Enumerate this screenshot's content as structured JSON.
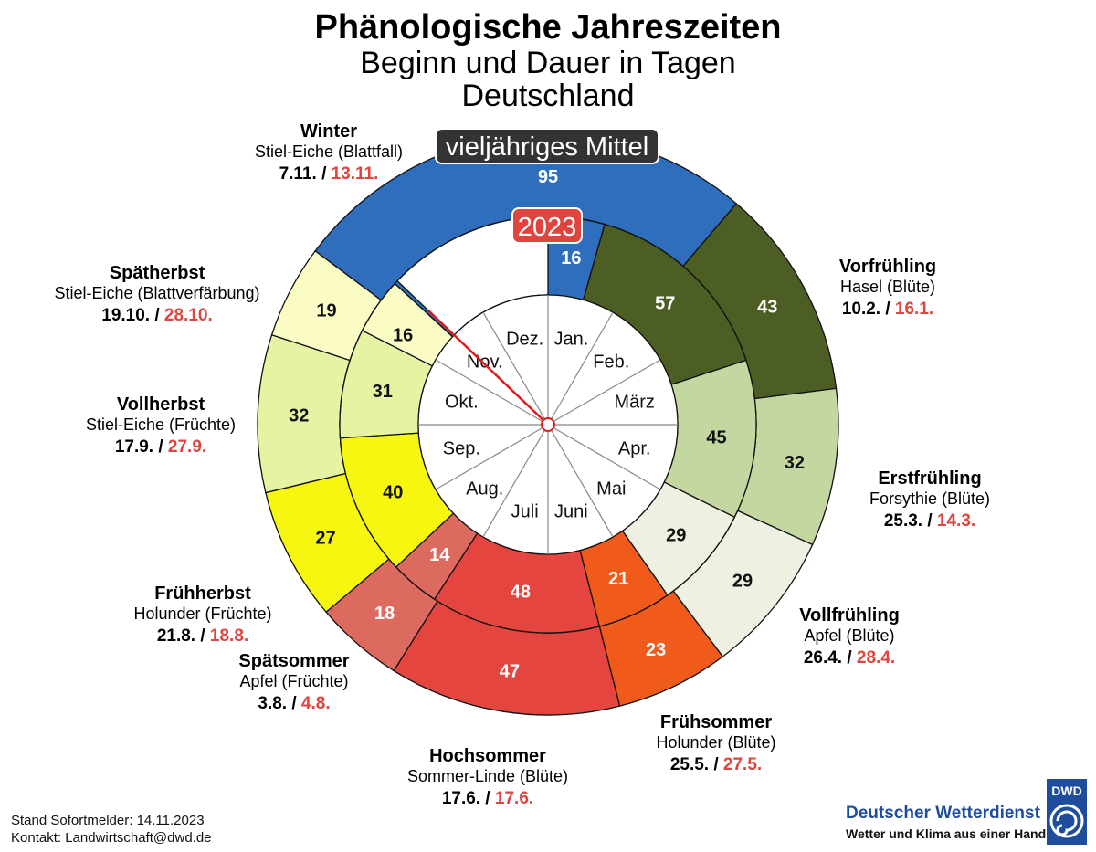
{
  "title": "Phänologische Jahreszeiten",
  "subtitle1": "Beginn und Dauer in Tagen",
  "subtitle2": "Deutschland",
  "outer_badge": "vieljähriges Mittel",
  "inner_badge": "2023",
  "footer": {
    "stand": "Stand Sofortmelder: 14.11.2023",
    "kontakt": "Kontakt: Landwirtschaft@dwd.de"
  },
  "dwd": {
    "logo_text": "DWD",
    "name": "Deutscher Wetterdienst",
    "slogan": "Wetter und Klima aus einer Hand"
  },
  "chart_data": {
    "type": "pie",
    "months": [
      "Jan.",
      "Feb.",
      "März",
      "Apr.",
      "Mai",
      "Juni",
      "Juli",
      "Aug.",
      "Sep.",
      "Okt.",
      "Nov.",
      "Dez."
    ],
    "seasons": [
      {
        "name": "Vorfrühling",
        "plant": "Hasel (Blüte)",
        "mean_start": "10.2.",
        "start_2023": "16.1.",
        "mean_days": 43,
        "days_2023": 57,
        "color": "#4d5e25",
        "text_color": "#ffffff"
      },
      {
        "name": "Erstfrühling",
        "plant": "Forsythie (Blüte)",
        "mean_start": "25.3.",
        "start_2023": "14.3.",
        "mean_days": 32,
        "days_2023": 45,
        "color": "#c4d7a0",
        "text_color": "#111111"
      },
      {
        "name": "Vollfrühling",
        "plant": "Apfel (Blüte)",
        "mean_start": "26.4.",
        "start_2023": "28.4.",
        "mean_days": 29,
        "days_2023": 29,
        "color": "#eef1e1",
        "text_color": "#111111"
      },
      {
        "name": "Frühsommer",
        "plant": "Holunder (Blüte)",
        "mean_start": "25.5.",
        "start_2023": "27.5.",
        "mean_days": 23,
        "days_2023": 21,
        "color": "#f05a1a",
        "text_color": "#ffffff"
      },
      {
        "name": "Hochsommer",
        "plant": "Sommer-Linde (Blüte)",
        "mean_start": "17.6.",
        "start_2023": "17.6.",
        "mean_days": 47,
        "days_2023": 48,
        "color": "#e4453f",
        "text_color": "#ffffff"
      },
      {
        "name": "Spätsommer",
        "plant": "Apfel (Früchte)",
        "mean_start": "3.8.",
        "start_2023": "4.8.",
        "mean_days": 18,
        "days_2023": 14,
        "color": "#dd6a5e",
        "text_color": "#ffffff"
      },
      {
        "name": "Frühherbst",
        "plant": "Holunder (Früchte)",
        "mean_start": "21.8.",
        "start_2023": "18.8.",
        "mean_days": 27,
        "days_2023": 40,
        "color": "#f6f60f",
        "text_color": "#111111"
      },
      {
        "name": "Vollherbst",
        "plant": "Stiel-Eiche (Früchte)",
        "mean_start": "17.9.",
        "start_2023": "27.9.",
        "mean_days": 32,
        "days_2023": 31,
        "color": "#e6f3a2",
        "text_color": "#111111"
      },
      {
        "name": "Spätherbst",
        "plant": "Stiel-Eiche (Blattverfärbung)",
        "mean_start": "19.10.",
        "start_2023": "28.10.",
        "mean_days": 19,
        "days_2023": 16,
        "color": "#fbfcc4",
        "text_color": "#111111"
      },
      {
        "name": "Winter",
        "plant": "Stiel-Eiche (Blattfall)",
        "mean_start": "7.11.",
        "start_2023": "13.11.",
        "mean_days": 95,
        "days_2023": 16,
        "color": "#2f6ebd",
        "text_color": "#ffffff"
      }
    ],
    "mean_start_doy": [
      41,
      84,
      116,
      145,
      168,
      215,
      233,
      260,
      292,
      311
    ],
    "start_doy_2023": [
      16,
      73,
      118,
      147,
      168,
      216,
      230,
      270,
      301,
      317
    ],
    "current_day_doy": 318
  }
}
